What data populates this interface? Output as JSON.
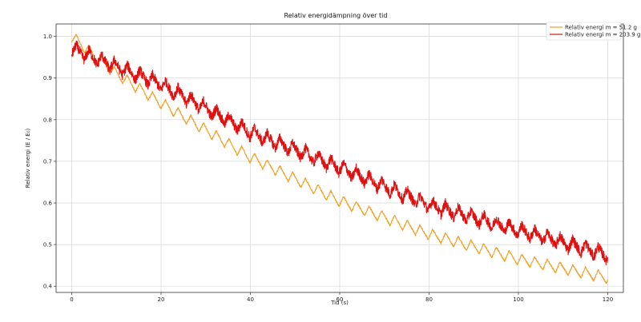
{
  "chart_data": {
    "type": "line",
    "title": "Relativ energidämpning över tid",
    "xlabel": "Tid (s)",
    "ylabel": "Relativ energi (E / E₀)",
    "xlim": [
      -3.5,
      123.5
    ],
    "ylim": [
      0.385,
      1.03
    ],
    "xticks": [
      0,
      20,
      40,
      60,
      80,
      100,
      120
    ],
    "yticks": [
      0.4,
      0.5,
      0.6,
      0.7,
      0.8,
      0.9,
      1.0
    ],
    "grid": true,
    "legend_position": "top-right",
    "oscillation_period_s": 2.85,
    "series": [
      {
        "name": "Relativ energi m = 51.2 g",
        "color": "#f0a020",
        "noise": 0.002,
        "amplitude": 0.028,
        "trend": [
          [
            0,
            1.0
          ],
          [
            10,
            0.91
          ],
          [
            20,
            0.84
          ],
          [
            40,
            0.71
          ],
          [
            60,
            0.605
          ],
          [
            80,
            0.525
          ],
          [
            100,
            0.465
          ],
          [
            120,
            0.42
          ]
        ]
      },
      {
        "name": "Relativ energi m = 203.9 g",
        "color": "#e01010",
        "noise": 0.012,
        "amplitude": 0.03,
        "trend": [
          [
            0,
            0.97
          ],
          [
            20,
            0.885
          ],
          [
            40,
            0.77
          ],
          [
            60,
            0.685
          ],
          [
            80,
            0.595
          ],
          [
            100,
            0.535
          ],
          [
            120,
            0.475
          ]
        ]
      }
    ]
  }
}
